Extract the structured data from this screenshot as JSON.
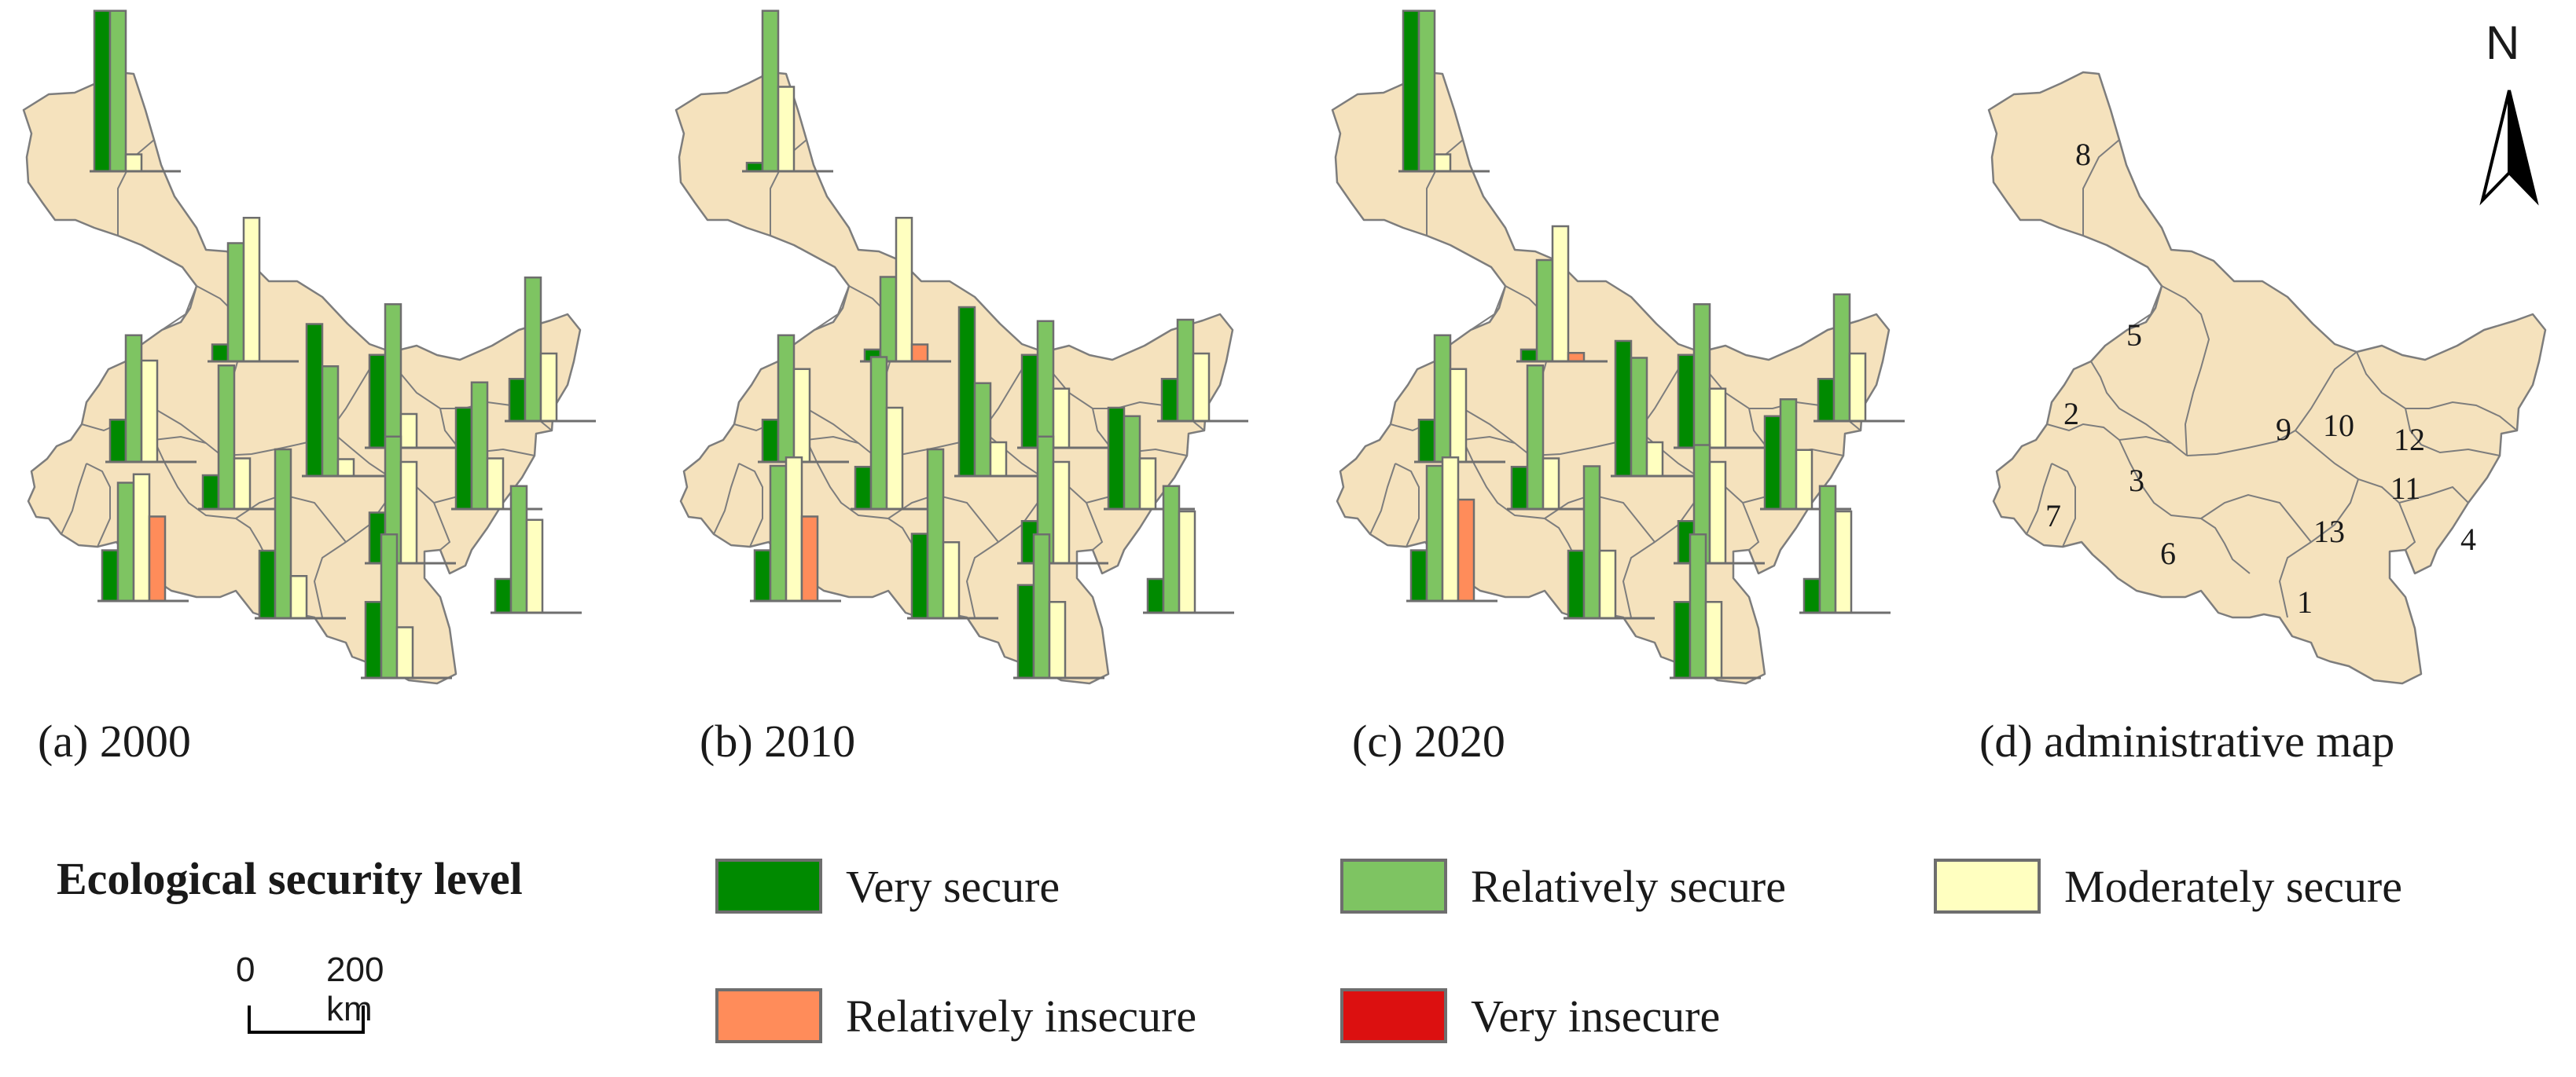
{
  "legend": {
    "title": "Ecological security level",
    "levels": [
      {
        "label": "Very secure",
        "color": "#008a00"
      },
      {
        "label": "Relatively secure",
        "color": "#7ec462"
      },
      {
        "label": "Moderately secure",
        "color": "#ffffc0"
      },
      {
        "label": "Relatively insecure",
        "color": "#ff8c5a"
      },
      {
        "label": "Very insecure",
        "color": "#dc1010"
      }
    ]
  },
  "scale_bar": {
    "start": "0",
    "end": "200 km"
  },
  "north_arrow": {
    "label": "N"
  },
  "map_style": {
    "land_color": "#f5e2bd",
    "border_color": "#7d7d7d"
  },
  "maps": [
    {
      "caption": "(a) 2000"
    },
    {
      "caption": "(b) 2010"
    },
    {
      "caption": "(c) 2020"
    },
    {
      "caption": "(d) administrative map"
    }
  ],
  "chart_data": {
    "type": "bar",
    "title": "",
    "levels": [
      "Very secure",
      "Relatively secure",
      "Moderately secure",
      "Relatively insecure",
      "Very insecure"
    ],
    "maps": [
      {
        "caption": "(a) 2000",
        "regions": [
          {
            "id": "8",
            "values": [
              0.95,
              0.95,
              0.1,
              0,
              0
            ]
          },
          {
            "id": "5",
            "values": [
              0.1,
              0.7,
              0.85,
              0,
              0
            ]
          },
          {
            "id": "2",
            "values": [
              0.25,
              0.75,
              0.6,
              0,
              0
            ]
          },
          {
            "id": "3",
            "values": [
              0.2,
              0.85,
              0.3,
              0,
              0
            ]
          },
          {
            "id": "9",
            "values": [
              0.9,
              0.65,
              0.1,
              0,
              0
            ]
          },
          {
            "id": "10",
            "values": [
              0.55,
              0.85,
              0.2,
              0,
              0
            ]
          },
          {
            "id": "12",
            "values": [
              0.25,
              0.85,
              0.4,
              0,
              0
            ]
          },
          {
            "id": "11",
            "values": [
              0.6,
              0.75,
              0.3,
              0,
              0
            ]
          },
          {
            "id": "7",
            "values": [
              0.3,
              0.7,
              0.75,
              0.5,
              0
            ]
          },
          {
            "id": "6",
            "values": [
              0.4,
              1.0,
              0.25,
              0,
              0
            ]
          },
          {
            "id": "13",
            "values": [
              0.3,
              0.75,
              0.6,
              0,
              0
            ]
          },
          {
            "id": "4",
            "values": [
              0.2,
              0.75,
              0.55,
              0,
              0
            ]
          },
          {
            "id": "1",
            "values": [
              0.45,
              0.85,
              0.3,
              0,
              0
            ]
          }
        ]
      },
      {
        "caption": "(b) 2010",
        "regions": [
          {
            "id": "8",
            "values": [
              0.05,
              0.95,
              0.5,
              0,
              0
            ]
          },
          {
            "id": "5",
            "values": [
              0.07,
              0.5,
              0.85,
              0.1,
              0
            ]
          },
          {
            "id": "2",
            "values": [
              0.25,
              0.75,
              0.55,
              0,
              0
            ]
          },
          {
            "id": "3",
            "values": [
              0.25,
              0.9,
              0.6,
              0,
              0
            ]
          },
          {
            "id": "9",
            "values": [
              1.0,
              0.55,
              0.2,
              0,
              0
            ]
          },
          {
            "id": "10",
            "values": [
              0.55,
              0.75,
              0.35,
              0,
              0
            ]
          },
          {
            "id": "12",
            "values": [
              0.25,
              0.6,
              0.4,
              0,
              0
            ]
          },
          {
            "id": "11",
            "values": [
              0.6,
              0.55,
              0.3,
              0,
              0
            ]
          },
          {
            "id": "7",
            "values": [
              0.3,
              0.8,
              0.85,
              0.5,
              0
            ]
          },
          {
            "id": "6",
            "values": [
              0.5,
              1.0,
              0.45,
              0,
              0
            ]
          },
          {
            "id": "13",
            "values": [
              0.25,
              0.75,
              0.6,
              0,
              0
            ]
          },
          {
            "id": "4",
            "values": [
              0.2,
              0.75,
              0.6,
              0,
              0
            ]
          },
          {
            "id": "1",
            "values": [
              0.55,
              0.85,
              0.45,
              0,
              0
            ]
          }
        ]
      },
      {
        "caption": "(c) 2020",
        "regions": [
          {
            "id": "8",
            "values": [
              0.95,
              0.95,
              0.1,
              0,
              0
            ]
          },
          {
            "id": "5",
            "values": [
              0.07,
              0.6,
              0.8,
              0.05,
              0
            ]
          },
          {
            "id": "2",
            "values": [
              0.25,
              0.75,
              0.55,
              0,
              0
            ]
          },
          {
            "id": "3",
            "values": [
              0.25,
              0.85,
              0.3,
              0,
              0
            ]
          },
          {
            "id": "9",
            "values": [
              0.8,
              0.7,
              0.2,
              0,
              0
            ]
          },
          {
            "id": "10",
            "values": [
              0.55,
              0.85,
              0.35,
              0,
              0
            ]
          },
          {
            "id": "12",
            "values": [
              0.25,
              0.75,
              0.4,
              0,
              0
            ]
          },
          {
            "id": "11",
            "values": [
              0.55,
              0.65,
              0.35,
              0,
              0
            ]
          },
          {
            "id": "7",
            "values": [
              0.3,
              0.8,
              0.85,
              0.6,
              0
            ]
          },
          {
            "id": "6",
            "values": [
              0.4,
              0.9,
              0.4,
              0,
              0
            ]
          },
          {
            "id": "13",
            "values": [
              0.25,
              0.7,
              0.6,
              0,
              0
            ]
          },
          {
            "id": "4",
            "values": [
              0.2,
              0.75,
              0.6,
              0,
              0
            ]
          },
          {
            "id": "1",
            "values": [
              0.45,
              0.85,
              0.45,
              0,
              0
            ]
          }
        ]
      }
    ]
  },
  "admin_map": {
    "regions": [
      "1",
      "2",
      "3",
      "4",
      "5",
      "6",
      "7",
      "8",
      "9",
      "10",
      "11",
      "12",
      "13"
    ]
  }
}
